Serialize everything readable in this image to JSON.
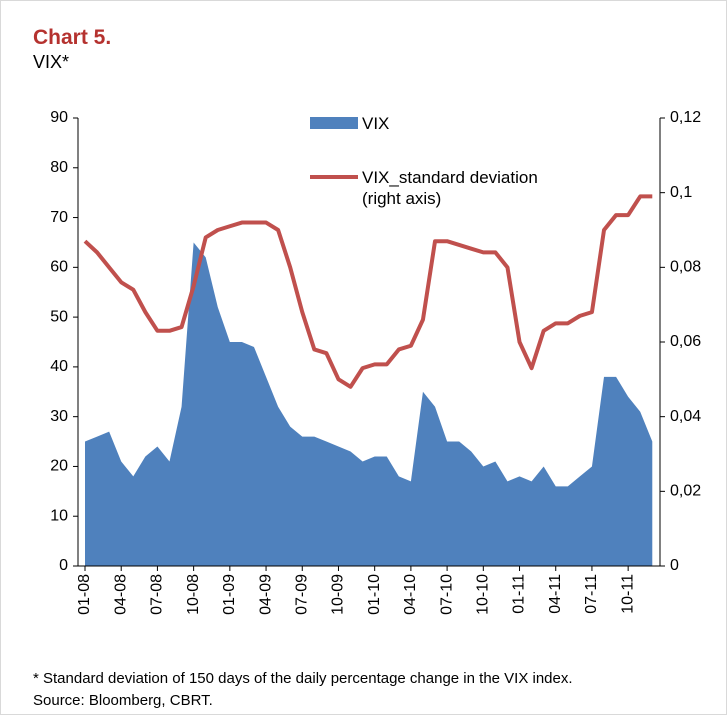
{
  "chart_data": {
    "type": "area_line",
    "title": "Chart 5.",
    "subtitle": "VIX*",
    "footnote": "* Standard deviation of 150 days of the daily percentage change in the VIX index.",
    "source": "Source: Bloomberg, CBRT.",
    "categories": [
      "01-08",
      null,
      null,
      "04-08",
      null,
      null,
      "07-08",
      null,
      null,
      "10-08",
      null,
      null,
      "01-09",
      null,
      null,
      "04-09",
      null,
      null,
      "07-09",
      null,
      null,
      "10-09",
      null,
      null,
      "01-10",
      null,
      null,
      "04-10",
      null,
      null,
      "07-10",
      null,
      null,
      "10-10",
      null,
      null,
      "01-11",
      null,
      null,
      "04-11",
      null,
      null,
      "07-11",
      null,
      null,
      "10-11",
      null,
      null
    ],
    "series": [
      {
        "name": "VIX",
        "color": "#4f81bd",
        "kind": "area",
        "axis": "y",
        "values": [
          25,
          26,
          27,
          21,
          18,
          22,
          24,
          21,
          32,
          65,
          62,
          52,
          45,
          45,
          44,
          38,
          32,
          28,
          26,
          26,
          25,
          24,
          23,
          21,
          22,
          22,
          18,
          17,
          35,
          32,
          25,
          25,
          23,
          20,
          21,
          17,
          18,
          17,
          20,
          16,
          16,
          18,
          20,
          38,
          38,
          34,
          31,
          25
        ]
      },
      {
        "name": "VIX_standard deviation (right axis)",
        "color": "#c0504d",
        "kind": "line",
        "axis": "y2",
        "values": [
          0.087,
          0.084,
          0.08,
          0.076,
          0.074,
          0.068,
          0.063,
          0.063,
          0.064,
          0.075,
          0.088,
          0.09,
          0.091,
          0.092,
          0.092,
          0.092,
          0.09,
          0.08,
          0.068,
          0.058,
          0.057,
          0.05,
          0.048,
          0.053,
          0.054,
          0.054,
          0.058,
          0.059,
          0.066,
          0.087,
          0.087,
          0.086,
          0.085,
          0.084,
          0.084,
          0.08,
          0.06,
          0.053,
          0.063,
          0.065,
          0.065,
          0.067,
          0.068,
          0.09,
          0.094,
          0.094,
          0.099,
          0.099
        ]
      }
    ],
    "ylim": [
      0,
      90
    ],
    "yticks": [
      0,
      10,
      20,
      30,
      40,
      50,
      60,
      70,
      80,
      90
    ],
    "y2lim": [
      0,
      0.12
    ],
    "y2ticks": [
      0,
      {
        "value": 0.02,
        "label": "0,02"
      },
      {
        "value": 0.04,
        "label": "0,04"
      },
      {
        "value": 0.06,
        "label": "0,06"
      },
      {
        "value": 0.08,
        "label": "0,08"
      },
      {
        "value": 0.1,
        "label": "0,1"
      },
      {
        "value": 0.12,
        "label": "0,12"
      }
    ],
    "grid": false
  }
}
